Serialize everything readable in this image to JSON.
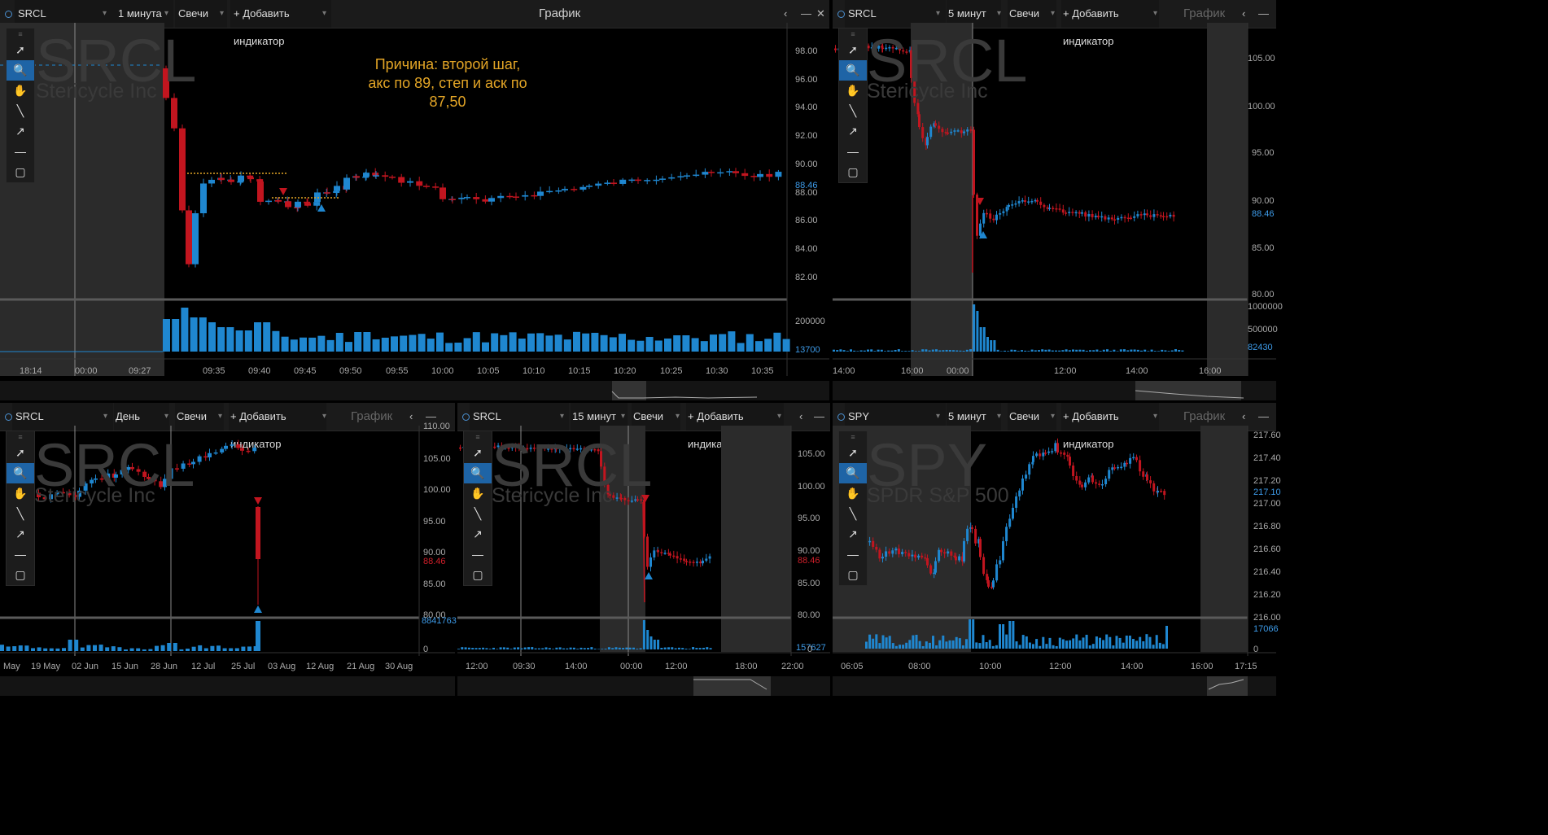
{
  "panels": [
    {
      "id": "p1",
      "symbol": "SRCL",
      "interval": "1 минута",
      "chart_type": "Свечи",
      "add_indicator": "+ Добавить индикатор",
      "title": "График",
      "watermark_symbol": "SRCL",
      "watermark_name": "Stericycle Inc",
      "annotation": [
        "Причина: второй шаг,",
        "акс по 89, степ и аск по",
        "87,50"
      ],
      "price_ticks": [
        "98.00",
        "96.00",
        "94.00",
        "92.00",
        "90.00",
        "88.00",
        "86.00",
        "84.00",
        "82.00"
      ],
      "last_price": "88.46",
      "volume_ticks": [
        "200000"
      ],
      "last_volume": "13700",
      "time_ticks": [
        "18:14",
        "00:00",
        "09:27",
        "09:35",
        "09:40",
        "09:45",
        "09:50",
        "09:55",
        "10:00",
        "10:05",
        "10:10",
        "10:15",
        "10:20",
        "10:25",
        "10:30",
        "10:35"
      ]
    },
    {
      "id": "p2",
      "symbol": "SRCL",
      "interval": "5 минут",
      "chart_type": "Свечи",
      "add_indicator": "+ Добавить индикатор",
      "title": "График",
      "watermark_symbol": "SRCL",
      "watermark_name": "Stericycle Inc",
      "price_ticks": [
        "105.00",
        "100.00",
        "95.00",
        "90.00",
        "85.00",
        "80.00"
      ],
      "last_price": "88.46",
      "volume_ticks": [
        "1000000",
        "500000"
      ],
      "last_volume": "82430",
      "time_ticks": [
        "14:00",
        "16:00",
        "00:00",
        "12:00",
        "14:00",
        "16:00"
      ]
    },
    {
      "id": "p3",
      "symbol": "SRCL",
      "interval": "День",
      "chart_type": "Свечи",
      "add_indicator": "+ Добавить индикатор",
      "title": "График",
      "watermark_symbol": "SRCL",
      "watermark_name": "Stericycle Inc",
      "price_ticks": [
        "110.00",
        "105.00",
        "100.00",
        "95.00",
        "90.00",
        "85.00",
        "80.00"
      ],
      "last_price": "88.46",
      "volume_ticks": [
        "0"
      ],
      "last_volume": "8841763",
      "time_ticks": [
        "May",
        "19 May",
        "02 Jun",
        "15 Jun",
        "28 Jun",
        "12 Jul",
        "25 Jul",
        "03 Aug",
        "12 Aug",
        "21 Aug",
        "30 Aug"
      ]
    },
    {
      "id": "p4",
      "symbol": "SRCL",
      "interval": "15 минут",
      "chart_type": "Свечи",
      "add_indicator": "+ Добавить индикатор",
      "title": "График",
      "watermark_symbol": "SRCL",
      "watermark_name": "Stericycle Inc",
      "price_ticks": [
        "105.00",
        "100.00",
        "95.00",
        "90.00",
        "85.00",
        "80.00"
      ],
      "last_price": "88.46",
      "volume_ticks": [
        "0"
      ],
      "last_volume": "157627",
      "time_ticks": [
        "12:00",
        "09:30",
        "14:00",
        "00:00",
        "12:00",
        "18:00",
        "22:00"
      ]
    },
    {
      "id": "p5",
      "symbol": "SPY",
      "interval": "5 минут",
      "chart_type": "Свечи",
      "add_indicator": "+ Добавить индикатор",
      "title": "График",
      "watermark_symbol": "SPY",
      "watermark_name": "SPDR S&P 500",
      "price_ticks": [
        "217.60",
        "217.40",
        "217.20",
        "217.00",
        "216.80",
        "216.60",
        "216.40",
        "216.20",
        "216.00"
      ],
      "last_price": "217.10",
      "volume_ticks": [
        "0"
      ],
      "last_volume": "17066",
      "time_ticks": [
        "06:05",
        "08:00",
        "10:00",
        "12:00",
        "14:00",
        "16:00",
        "17:15"
      ]
    }
  ],
  "tools": [
    "pointer-icon",
    "zoom-icon",
    "hand-icon",
    "line-icon",
    "arrow-icon",
    "hline-icon",
    "rect-icon"
  ],
  "colors": {
    "up": "#1f87d0",
    "down": "#c2151f",
    "annotation": "#e3a526",
    "session": "#2b2b2b"
  }
}
